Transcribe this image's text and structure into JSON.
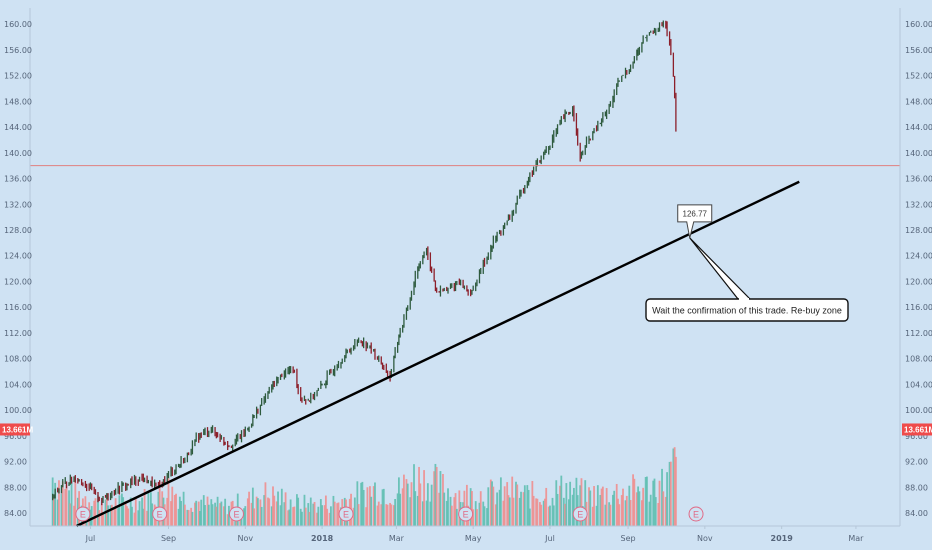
{
  "colors": {
    "background": "#cfe2f3",
    "up_bar": "#2d5a3d",
    "down_bar": "#8c1f2a",
    "volume_up": "#5fbfb1",
    "volume_down": "#ee8f8f",
    "trendline": "#000000",
    "horizontal_line": "#e08080",
    "volume_badge": "#ef4b4b",
    "event_marker": "#e06a86"
  },
  "chart_data": [
    {
      "type": "line",
      "title": "",
      "price_axis": {
        "ticks": [
          "84.00",
          "88.00",
          "92.00",
          "96.00",
          "100.00",
          "104.00",
          "108.00",
          "112.00",
          "116.00",
          "120.00",
          "124.00",
          "128.00",
          "132.00",
          "136.00",
          "140.00",
          "144.00",
          "148.00",
          "152.00",
          "156.00",
          "160.00"
        ],
        "range": [
          82.0,
          162.5
        ]
      },
      "time_axis": {
        "ticks": [
          "Jul",
          "Sep",
          "Nov",
          "2018",
          "Mar",
          "May",
          "Jul",
          "Sep",
          "Nov",
          "2019",
          "Mar"
        ]
      },
      "volume_badge": "13.661M",
      "price_series": [
        [
          "2017-06-01",
          86.5
        ],
        [
          "2017-06-10",
          88.5
        ],
        [
          "2017-06-20",
          89.5
        ],
        [
          "2017-06-30",
          88.0
        ],
        [
          "2017-07-10",
          86.0
        ],
        [
          "2017-07-20",
          87.5
        ],
        [
          "2017-07-31",
          88.5
        ],
        [
          "2017-08-10",
          89.5
        ],
        [
          "2017-08-25",
          88.0
        ],
        [
          "2017-09-01",
          90.0
        ],
        [
          "2017-09-15",
          92.5
        ],
        [
          "2017-09-25",
          96.0
        ],
        [
          "2017-10-05",
          97.0
        ],
        [
          "2017-10-20",
          94.5
        ],
        [
          "2017-11-01",
          96.5
        ],
        [
          "2017-11-10",
          99.5
        ],
        [
          "2017-11-20",
          103.0
        ],
        [
          "2017-11-30",
          105.5
        ],
        [
          "2017-12-10",
          106.5
        ],
        [
          "2017-12-15",
          102.0
        ],
        [
          "2017-12-22",
          101.5
        ],
        [
          "2017-12-31",
          103.5
        ],
        [
          "2018-01-15",
          107.5
        ],
        [
          "2018-01-31",
          111.0
        ],
        [
          "2018-02-07",
          110.0
        ],
        [
          "2018-02-15",
          108.0
        ],
        [
          "2018-02-25",
          105.0
        ],
        [
          "2018-03-01",
          110.0
        ],
        [
          "2018-03-10",
          115.5
        ],
        [
          "2018-03-17",
          121.5
        ],
        [
          "2018-03-25",
          125.0
        ],
        [
          "2018-04-02",
          118.5
        ],
        [
          "2018-04-10",
          118.5
        ],
        [
          "2018-04-20",
          120.0
        ],
        [
          "2018-04-30",
          118.0
        ],
        [
          "2018-05-10",
          123.0
        ],
        [
          "2018-05-20",
          127.0
        ],
        [
          "2018-05-31",
          130.0
        ],
        [
          "2018-06-10",
          134.5
        ],
        [
          "2018-06-20",
          138.0
        ],
        [
          "2018-07-01",
          141.0
        ],
        [
          "2018-07-10",
          145.0
        ],
        [
          "2018-07-20",
          147.0
        ],
        [
          "2018-07-25",
          139.0
        ],
        [
          "2018-08-01",
          142.0
        ],
        [
          "2018-08-15",
          146.0
        ],
        [
          "2018-08-25",
          151.0
        ],
        [
          "2018-09-05",
          154.0
        ],
        [
          "2018-09-15",
          158.0
        ],
        [
          "2018-09-25",
          159.5
        ],
        [
          "2018-10-01",
          160.0
        ],
        [
          "2018-10-05",
          156.0
        ],
        [
          "2018-10-08",
          150.0
        ],
        [
          "2018-10-10",
          143.0
        ],
        [
          "2018-10-11",
          138.0
        ]
      ],
      "volume_series": [
        [
          "2017-06-01",
          0.45
        ],
        [
          "2017-06-15",
          0.3
        ],
        [
          "2017-07-01",
          0.25
        ],
        [
          "2017-07-15",
          0.2
        ],
        [
          "2017-08-01",
          0.22
        ],
        [
          "2017-08-15",
          0.25
        ],
        [
          "2017-09-01",
          0.35
        ],
        [
          "2017-09-15",
          0.25
        ],
        [
          "2017-10-01",
          0.2
        ],
        [
          "2017-10-15",
          0.18
        ],
        [
          "2017-11-01",
          0.22
        ],
        [
          "2017-11-15",
          0.3
        ],
        [
          "2017-12-01",
          0.25
        ],
        [
          "2017-12-15",
          0.2
        ],
        [
          "2018-01-01",
          0.2
        ],
        [
          "2018-01-15",
          0.22
        ],
        [
          "2018-02-01",
          0.3
        ],
        [
          "2018-02-15",
          0.35
        ],
        [
          "2018-03-01",
          0.3
        ],
        [
          "2018-03-15",
          0.45
        ],
        [
          "2018-04-01",
          0.4
        ],
        [
          "2018-04-15",
          0.3
        ],
        [
          "2018-05-01",
          0.28
        ],
        [
          "2018-05-15",
          0.3
        ],
        [
          "2018-06-01",
          0.32
        ],
        [
          "2018-06-15",
          0.28
        ],
        [
          "2018-07-01",
          0.3
        ],
        [
          "2018-07-15",
          0.35
        ],
        [
          "2018-08-01",
          0.28
        ],
        [
          "2018-08-15",
          0.3
        ],
        [
          "2018-09-01",
          0.32
        ],
        [
          "2018-09-15",
          0.35
        ],
        [
          "2018-10-01",
          0.4
        ],
        [
          "2018-10-10",
          0.6
        ]
      ],
      "horizontal_level": 138.0,
      "trendline": {
        "start": [
          "2017-06-20",
          82.0
        ],
        "end": [
          "2019-01-15",
          135.5
        ]
      },
      "annotations": [
        {
          "type": "price_label",
          "text": "126.77",
          "date": "2018-10-20",
          "value": 126.77
        },
        {
          "type": "callout",
          "text": "Wait the confirmation of this trade. Re-buy zone"
        }
      ],
      "event_markers": [
        "2017-06-25",
        "2017-08-25",
        "2017-10-25",
        "2018-01-20",
        "2018-04-25",
        "2018-07-25",
        "2018-10-25"
      ],
      "event_label": "E",
      "grid": false
    }
  ]
}
